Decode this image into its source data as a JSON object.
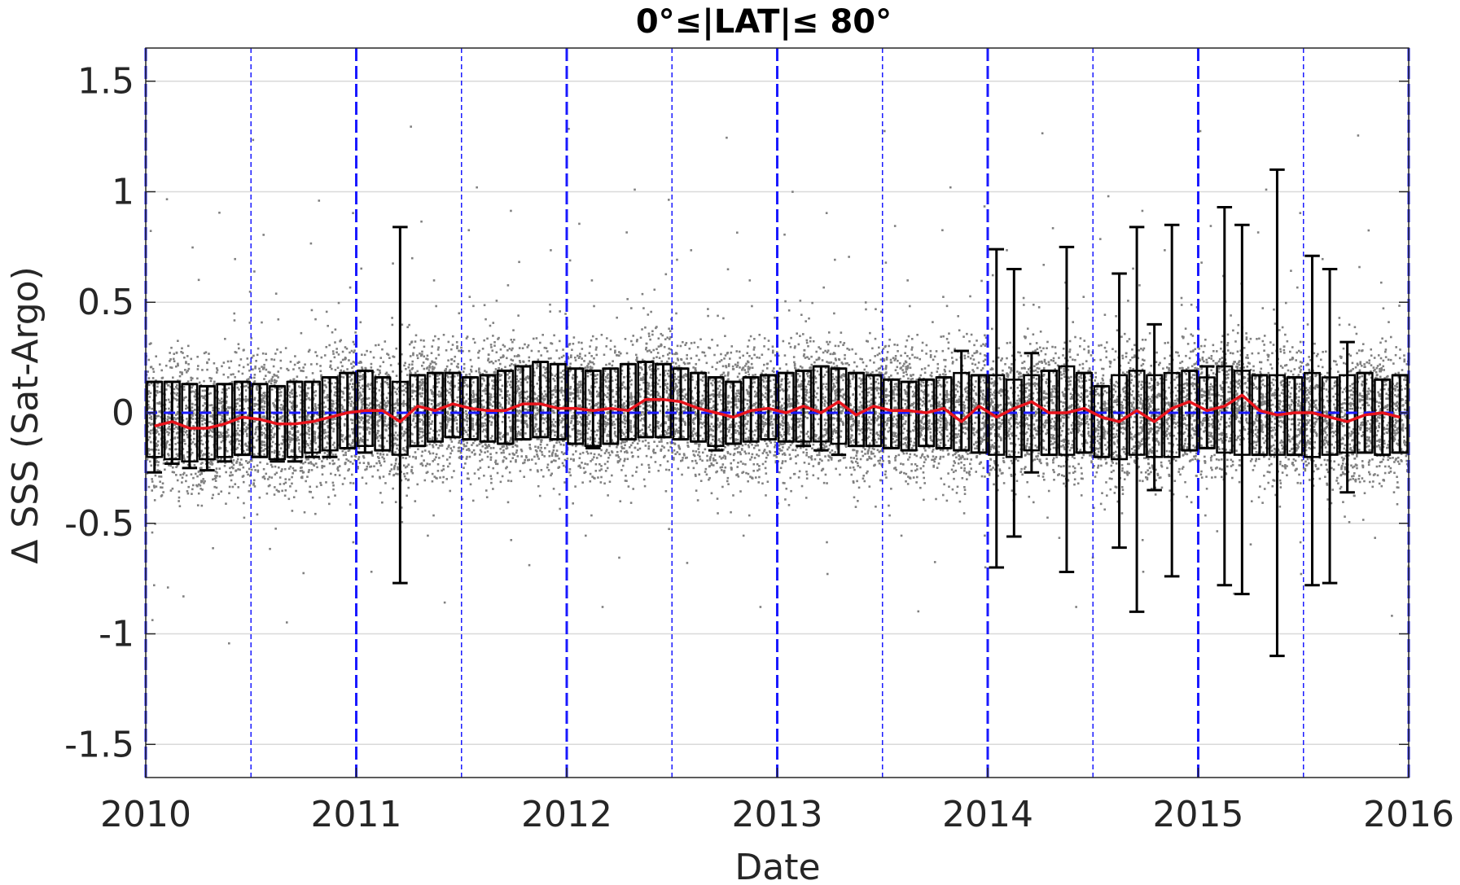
{
  "chart_data": {
    "type": "scatter",
    "title": "0°≤|LAT|≤ 80°",
    "xlabel": "Date",
    "ylabel": "Δ SSS (Sat-Argo)",
    "xlim": [
      "2010",
      "2016"
    ],
    "ylim": [
      -1.65,
      1.65
    ],
    "x_ticks": [
      "2010",
      "2011",
      "2012",
      "2013",
      "2014",
      "2015",
      "2016"
    ],
    "y_ticks": [
      1.5,
      1,
      0.5,
      0,
      -0.5,
      -1,
      -1.5
    ],
    "y_tick_labels": [
      "1.5",
      "1",
      "0.5",
      "0",
      "-0.5",
      "-1",
      "-1.5"
    ],
    "grid": true,
    "reference_lines": {
      "horizontal_zero": 0,
      "year_boundaries": [
        "2010",
        "2011",
        "2012",
        "2013",
        "2014",
        "2015",
        "2016"
      ],
      "half_year_marks": [
        "2010-07",
        "2011-07",
        "2012-07",
        "2013-07",
        "2014-07",
        "2015-07"
      ]
    },
    "colors": {
      "scatter": "#808080",
      "box": "#000000",
      "median_line": "#e8141c",
      "reference": "#1a1aff",
      "grid": "#d9d9d9"
    },
    "scatter_description_stats": {
      "center_trend": "near 0",
      "typical_spread": 0.3
    },
    "monthly_series": {
      "name": "",
      "months": [
        "2010-01",
        "2010-02",
        "2010-03",
        "2010-04",
        "2010-05",
        "2010-06",
        "2010-07",
        "2010-08",
        "2010-09",
        "2010-10",
        "2010-11",
        "2010-12",
        "2011-01",
        "2011-02",
        "2011-03",
        "2011-04",
        "2011-05",
        "2011-06",
        "2011-07",
        "2011-08",
        "2011-09",
        "2011-10",
        "2011-11",
        "2011-12",
        "2012-01",
        "2012-02",
        "2012-03",
        "2012-04",
        "2012-05",
        "2012-06",
        "2012-07",
        "2012-08",
        "2012-09",
        "2012-10",
        "2012-11",
        "2012-12",
        "2013-01",
        "2013-02",
        "2013-03",
        "2013-04",
        "2013-05",
        "2013-06",
        "2013-07",
        "2013-08",
        "2013-09",
        "2013-10",
        "2013-11",
        "2013-12",
        "2014-01",
        "2014-02",
        "2014-03",
        "2014-04",
        "2014-05",
        "2014-06",
        "2014-07",
        "2014-08",
        "2014-09",
        "2014-10",
        "2014-11",
        "2014-12",
        "2015-01",
        "2015-02",
        "2015-03",
        "2015-04",
        "2015-05",
        "2015-06",
        "2015-07",
        "2015-08",
        "2015-09",
        "2015-10",
        "2015-11",
        "2015-12"
      ],
      "median": [
        -0.06,
        -0.04,
        -0.07,
        -0.07,
        -0.05,
        -0.02,
        -0.03,
        -0.05,
        -0.05,
        -0.04,
        -0.02,
        0.0,
        0.01,
        0.01,
        -0.04,
        0.03,
        0.01,
        0.04,
        0.02,
        0.01,
        0.01,
        0.04,
        0.04,
        0.02,
        0.02,
        0.01,
        0.02,
        0.01,
        0.06,
        0.06,
        0.05,
        0.02,
        0.0,
        -0.02,
        0.01,
        0.02,
        0.0,
        0.03,
        0.0,
        0.05,
        -0.01,
        0.03,
        0.01,
        0.01,
        0.0,
        0.02,
        -0.04,
        0.03,
        -0.02,
        0.02,
        0.05,
        0.0,
        0.0,
        0.02,
        -0.02,
        -0.04,
        0.01,
        -0.04,
        0.02,
        0.05,
        0.01,
        0.03,
        0.08,
        0.01,
        -0.01,
        0.0,
        0.0,
        -0.02,
        -0.04,
        -0.01,
        0.0,
        -0.02
      ],
      "box_top": [
        0.14,
        0.14,
        0.13,
        0.12,
        0.13,
        0.14,
        0.13,
        0.12,
        0.14,
        0.14,
        0.16,
        0.18,
        0.19,
        0.16,
        0.14,
        0.17,
        0.18,
        0.18,
        0.16,
        0.17,
        0.19,
        0.21,
        0.23,
        0.22,
        0.2,
        0.19,
        0.2,
        0.22,
        0.23,
        0.22,
        0.2,
        0.18,
        0.16,
        0.14,
        0.16,
        0.17,
        0.18,
        0.19,
        0.21,
        0.2,
        0.18,
        0.17,
        0.15,
        0.14,
        0.15,
        0.16,
        0.18,
        0.17,
        0.17,
        0.15,
        0.17,
        0.19,
        0.21,
        0.18,
        0.12,
        0.17,
        0.19,
        0.17,
        0.18,
        0.19,
        0.16,
        0.21,
        0.19,
        0.17,
        0.17,
        0.16,
        0.18,
        0.16,
        0.17,
        0.18,
        0.15,
        0.17
      ],
      "box_bottom": [
        -0.2,
        -0.21,
        -0.22,
        -0.21,
        -0.2,
        -0.19,
        -0.2,
        -0.21,
        -0.2,
        -0.18,
        -0.17,
        -0.16,
        -0.15,
        -0.17,
        -0.19,
        -0.15,
        -0.13,
        -0.11,
        -0.12,
        -0.13,
        -0.14,
        -0.12,
        -0.11,
        -0.12,
        -0.14,
        -0.15,
        -0.14,
        -0.12,
        -0.11,
        -0.11,
        -0.12,
        -0.13,
        -0.15,
        -0.14,
        -0.13,
        -0.12,
        -0.13,
        -0.13,
        -0.13,
        -0.14,
        -0.15,
        -0.15,
        -0.16,
        -0.17,
        -0.15,
        -0.16,
        -0.17,
        -0.18,
        -0.19,
        -0.2,
        -0.17,
        -0.19,
        -0.19,
        -0.18,
        -0.2,
        -0.21,
        -0.19,
        -0.2,
        -0.2,
        -0.17,
        -0.16,
        -0.18,
        -0.19,
        -0.19,
        -0.19,
        -0.19,
        -0.2,
        -0.19,
        -0.18,
        -0.18,
        -0.19,
        -0.18
      ],
      "whisker_high": [
        0.14,
        0.14,
        0.13,
        0.12,
        0.13,
        0.14,
        0.13,
        0.12,
        0.14,
        0.14,
        0.16,
        0.18,
        0.19,
        0.16,
        0.84,
        0.17,
        0.18,
        0.18,
        0.16,
        0.17,
        0.19,
        0.21,
        0.23,
        0.22,
        0.2,
        0.19,
        0.2,
        0.22,
        0.23,
        0.22,
        0.2,
        0.18,
        0.16,
        0.14,
        0.16,
        0.17,
        0.18,
        0.19,
        0.21,
        0.2,
        0.18,
        0.17,
        0.15,
        0.14,
        0.15,
        0.16,
        0.28,
        0.17,
        0.74,
        0.65,
        0.27,
        0.19,
        0.75,
        0.18,
        0.12,
        0.63,
        0.84,
        0.4,
        0.85,
        0.19,
        0.21,
        0.93,
        0.85,
        0.17,
        1.1,
        0.16,
        0.71,
        0.65,
        0.32,
        0.18,
        0.15,
        0.17
      ],
      "whisker_low": [
        -0.27,
        -0.23,
        -0.25,
        -0.26,
        -0.22,
        -0.19,
        -0.2,
        -0.22,
        -0.22,
        -0.2,
        -0.2,
        -0.16,
        -0.18,
        -0.17,
        -0.77,
        -0.15,
        -0.13,
        -0.11,
        -0.12,
        -0.13,
        -0.14,
        -0.12,
        -0.11,
        -0.12,
        -0.14,
        -0.16,
        -0.14,
        -0.12,
        -0.11,
        -0.11,
        -0.12,
        -0.13,
        -0.17,
        -0.14,
        -0.13,
        -0.12,
        -0.13,
        -0.15,
        -0.17,
        -0.19,
        -0.15,
        -0.15,
        -0.16,
        -0.17,
        -0.15,
        -0.16,
        -0.17,
        -0.18,
        -0.7,
        -0.56,
        -0.27,
        -0.19,
        -0.72,
        -0.18,
        -0.2,
        -0.61,
        -0.9,
        -0.35,
        -0.74,
        -0.17,
        -0.16,
        -0.78,
        -0.82,
        -0.19,
        -1.1,
        -0.19,
        -0.78,
        -0.77,
        -0.36,
        -0.18,
        -0.19,
        -0.18
      ]
    }
  }
}
